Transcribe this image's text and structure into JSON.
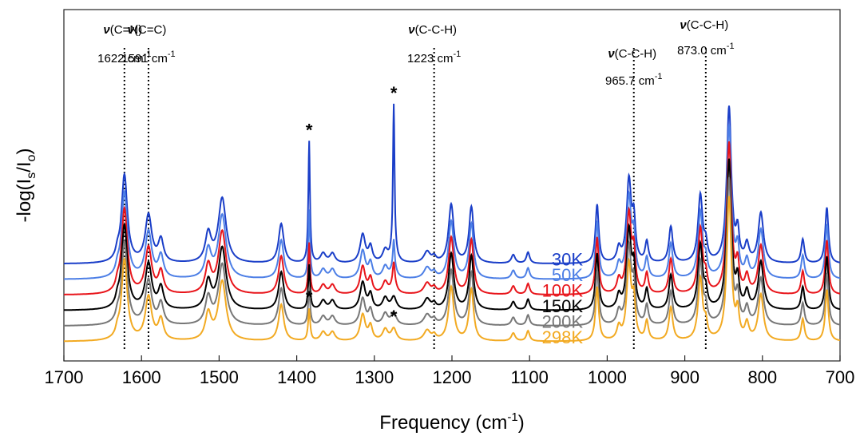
{
  "chart_data": {
    "type": "line",
    "xlabel": "Frequency (cm",
    "xlabel_sup": "-1",
    "xlabel_end": ")",
    "ylabel": "-log(I",
    "ylabel_sub1": "s",
    "ylabel_mid": "/I",
    "ylabel_sub2": "o",
    "ylabel_end": ")",
    "xlim": [
      1700,
      700
    ],
    "x_reversed": true,
    "x_ticks": [
      "1700",
      "1600",
      "1500",
      "1400",
      "1300",
      "1200",
      "1100",
      "1000",
      "900",
      "800",
      "700"
    ],
    "grid": false,
    "peaks": [
      {
        "x": 1631,
        "h": 0.8,
        "w": 2.5
      },
      {
        "x": 1622,
        "h": 10.2,
        "w": 4.5
      },
      {
        "x": 1591,
        "h": 5.5,
        "w": 5
      },
      {
        "x": 1575,
        "h": 2.6,
        "w": 4
      },
      {
        "x": 1514,
        "h": 3.3,
        "w": 4.5
      },
      {
        "x": 1496,
        "h": 7.5,
        "w": 6
      },
      {
        "x": 1420,
        "h": 4.6,
        "w": 4
      },
      {
        "x": 1384,
        "h": 3.6,
        "w": 1.5
      },
      {
        "x": 1366,
        "h": 1.1,
        "w": 4
      },
      {
        "x": 1354,
        "h": 1.1,
        "w": 4
      },
      {
        "x": 1315,
        "h": 3.3,
        "w": 4
      },
      {
        "x": 1305,
        "h": 1.8,
        "w": 3
      },
      {
        "x": 1286,
        "h": 1.4,
        "w": 4
      },
      {
        "x": 1275,
        "h": 1.5,
        "w": 4
      },
      {
        "x": 1232,
        "h": 1.3,
        "w": 5
      },
      {
        "x": 1223,
        "h": 0.6,
        "w": 3
      },
      {
        "x": 1201,
        "h": 6.8,
        "w": 4
      },
      {
        "x": 1175,
        "h": 6.5,
        "w": 3.5
      },
      {
        "x": 1121,
        "h": 1.0,
        "w": 3
      },
      {
        "x": 1102,
        "h": 1.3,
        "w": 2.5
      },
      {
        "x": 1013,
        "h": 6.8,
        "w": 2.5
      },
      {
        "x": 985,
        "h": 1.6,
        "w": 3
      },
      {
        "x": 972,
        "h": 9.5,
        "w": 3.5
      },
      {
        "x": 965.7,
        "h": 4.5,
        "w": 2.5
      },
      {
        "x": 949,
        "h": 2.4,
        "w": 2.5
      },
      {
        "x": 918,
        "h": 4.2,
        "w": 3
      },
      {
        "x": 880,
        "h": 7.8,
        "w": 3.5
      },
      {
        "x": 873,
        "h": 1.8,
        "w": 2.5
      },
      {
        "x": 843,
        "h": 18.0,
        "w": 3.5
      },
      {
        "x": 832,
        "h": 3.2,
        "w": 2.5
      },
      {
        "x": 820,
        "h": 2.0,
        "w": 3
      },
      {
        "x": 802,
        "h": 5.8,
        "w": 4
      },
      {
        "x": 748,
        "h": 2.8,
        "w": 2.5
      },
      {
        "x": 717,
        "h": 6.5,
        "w": 2.5
      }
    ],
    "series": [
      {
        "name": "30K",
        "color": "#1a3ec8",
        "offset": 9.2,
        "scale": 1.0,
        "extra": [
          {
            "x": 1384,
            "h": 10.5,
            "w": 1.2
          },
          {
            "x": 1275,
            "h": 16.8,
            "w": 1.2
          }
        ]
      },
      {
        "name": "50K",
        "color": "#4d7fe6",
        "offset": 7.4,
        "scale": 0.98,
        "extra": [
          {
            "x": 1384,
            "h": 4.5,
            "w": 1.2
          },
          {
            "x": 1275,
            "h": 3.0,
            "w": 1.2
          }
        ]
      },
      {
        "name": "100K",
        "color": "#e8151b",
        "offset": 5.6,
        "scale": 0.97,
        "extra": [
          {
            "x": 1384,
            "h": 2.5,
            "w": 1.2
          },
          {
            "x": 1275,
            "h": 2.2,
            "w": 1.5
          }
        ]
      },
      {
        "name": "150K",
        "color": "#000000",
        "offset": 3.8,
        "scale": 0.96,
        "extra": [
          {
            "x": 1384,
            "h": 1.8,
            "w": 1.3
          }
        ]
      },
      {
        "name": "200K",
        "color": "#777777",
        "offset": 2.0,
        "scale": 0.94,
        "extra": [
          {
            "x": 1384,
            "h": 1.0,
            "w": 1.5
          }
        ]
      },
      {
        "name": "298K",
        "color": "#f2aa22",
        "offset": 0.2,
        "scale": 0.92,
        "extra": [
          {
            "x": 1384,
            "h": 0.4,
            "w": 2
          }
        ]
      }
    ],
    "vlines": [
      1622,
      1591,
      1223,
      965.7,
      873.0
    ],
    "annotations": [
      {
        "nu": "ν",
        "mode": "(C=N)",
        "freq": "1622 cm",
        "sup": "-1",
        "x": 1622
      },
      {
        "nu": "ν",
        "mode": "(C=C)",
        "freq": "1591 cm",
        "sup": "-1",
        "x": 1591
      },
      {
        "nu": "ν",
        "mode": "(C-C-H)",
        "freq": "1223 cm",
        "sup": "-1",
        "x": 1223
      },
      {
        "nu": "ν",
        "mode": "(C-C-H)",
        "freq": "965.7 cm",
        "sup": "-1",
        "x": 965.7
      },
      {
        "nu": "ν",
        "mode": "(C-C-H)",
        "freq": "873.0 cm",
        "sup": "-1",
        "x": 873.0
      }
    ],
    "star": "*",
    "stars": [
      {
        "x": 1384,
        "series": "30K"
      },
      {
        "x": 1275,
        "series": "30K"
      },
      {
        "x": 1384,
        "series": "298K"
      },
      {
        "x": 1275,
        "series": "298K"
      }
    ]
  }
}
